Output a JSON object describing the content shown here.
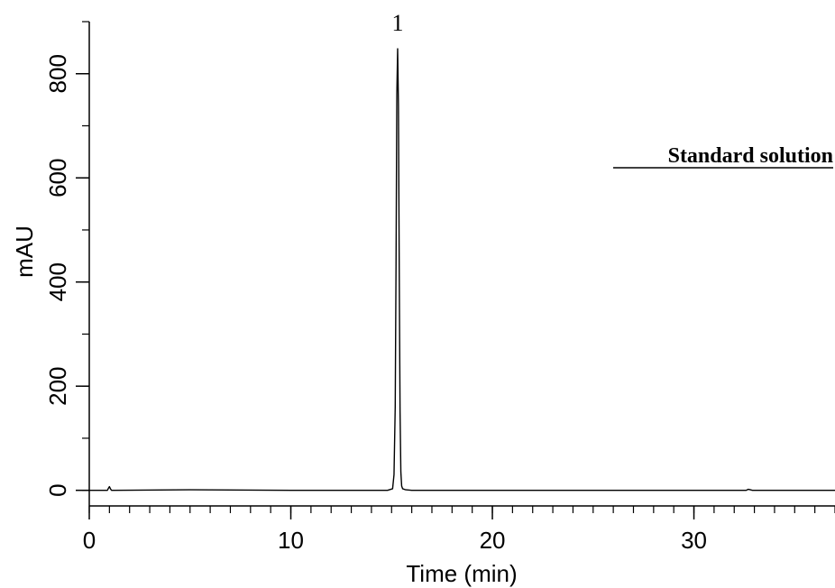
{
  "chart_data": {
    "type": "line",
    "title": "",
    "xlabel": "Time (min)",
    "ylabel": "mAU",
    "xlim": [
      0,
      37
    ],
    "ylim": [
      -30,
      900
    ],
    "x_ticks": [
      0,
      10,
      20,
      30
    ],
    "y_ticks": [
      0,
      200,
      400,
      600,
      800
    ],
    "x_minor_step": 1,
    "y_minor_step": 100,
    "grid": false,
    "legend": "none",
    "annotation": "Standard solution",
    "peak_labels": [
      {
        "label": "1",
        "x": 15.3,
        "y": 848
      }
    ],
    "series": [
      {
        "color": "#000000",
        "x": [
          0,
          0.9,
          0.95,
          1.0,
          1.05,
          1.1,
          5,
          10,
          14.8,
          15.05,
          15.12,
          15.18,
          15.22,
          15.26,
          15.3,
          15.34,
          15.38,
          15.42,
          15.46,
          15.5,
          15.55,
          15.7,
          16,
          20,
          25,
          30,
          32.6,
          32.7,
          32.8,
          32.9,
          37
        ],
        "y": [
          0,
          0,
          4,
          7,
          3,
          0,
          1,
          0,
          0,
          3,
          30,
          160,
          430,
          760,
          848,
          740,
          420,
          150,
          35,
          8,
          3,
          1,
          0,
          0,
          0,
          0,
          0,
          2,
          1,
          0,
          0
        ]
      }
    ]
  }
}
